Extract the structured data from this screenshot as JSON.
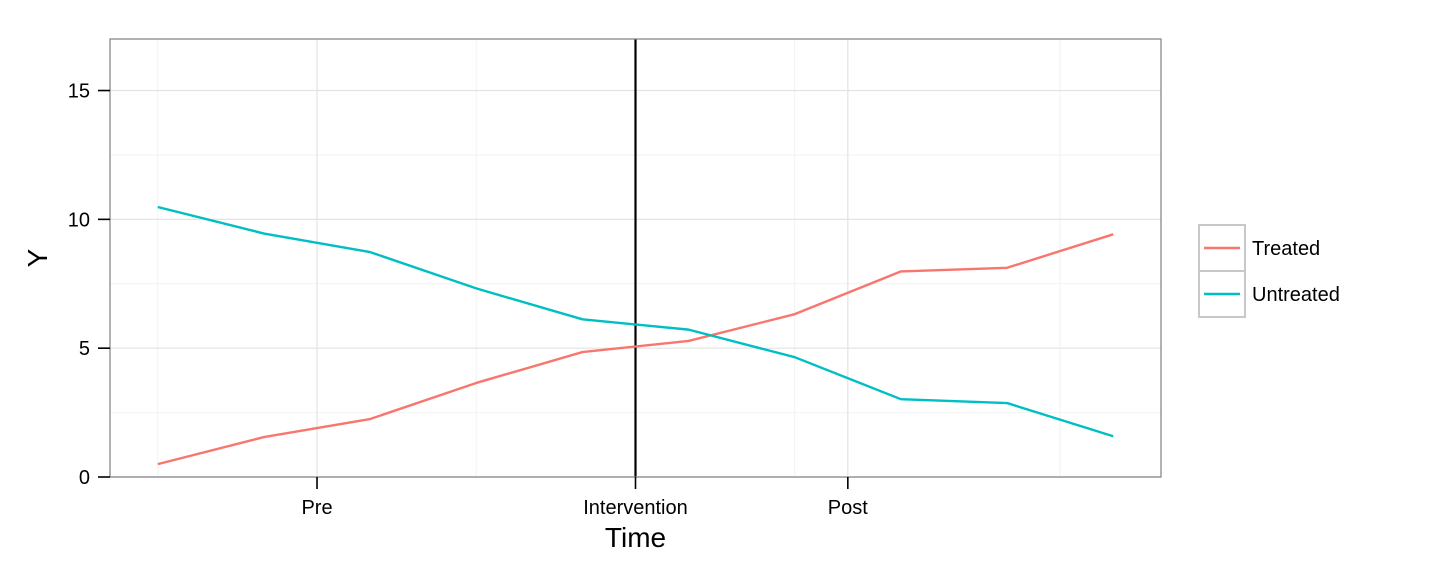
{
  "chart_data": {
    "type": "line",
    "xlabel": "Time",
    "ylabel": "Y",
    "xlim": [
      0.55,
      10.45
    ],
    "ylim": [
      0,
      17
    ],
    "y_ticks": [
      0,
      5,
      10,
      15
    ],
    "x_ticks": [
      {
        "value": 2.5,
        "label": "Pre"
      },
      {
        "value": 5.5,
        "label": "Intervention"
      },
      {
        "value": 7.5,
        "label": "Post"
      }
    ],
    "x_minor_gridlines": [
      1,
      4,
      7,
      9.5
    ],
    "y_minor_gridlines": [
      2.5,
      7.5,
      12.5
    ],
    "intervention_line_x": 5.5,
    "grid": true,
    "legend_position": "right",
    "x": [
      1,
      2,
      3,
      4,
      5,
      6,
      7,
      8,
      9,
      10
    ],
    "series": [
      {
        "name": "Treated",
        "color": "#F8766D",
        "values": [
          0.5,
          1.55,
          2.25,
          3.65,
          4.85,
          5.28,
          6.32,
          7.98,
          8.12,
          9.42
        ]
      },
      {
        "name": "Untreated",
        "color": "#00BFC4",
        "values": [
          10.48,
          9.45,
          8.73,
          7.32,
          6.12,
          5.72,
          4.65,
          3.02,
          2.87,
          1.58
        ]
      }
    ]
  }
}
